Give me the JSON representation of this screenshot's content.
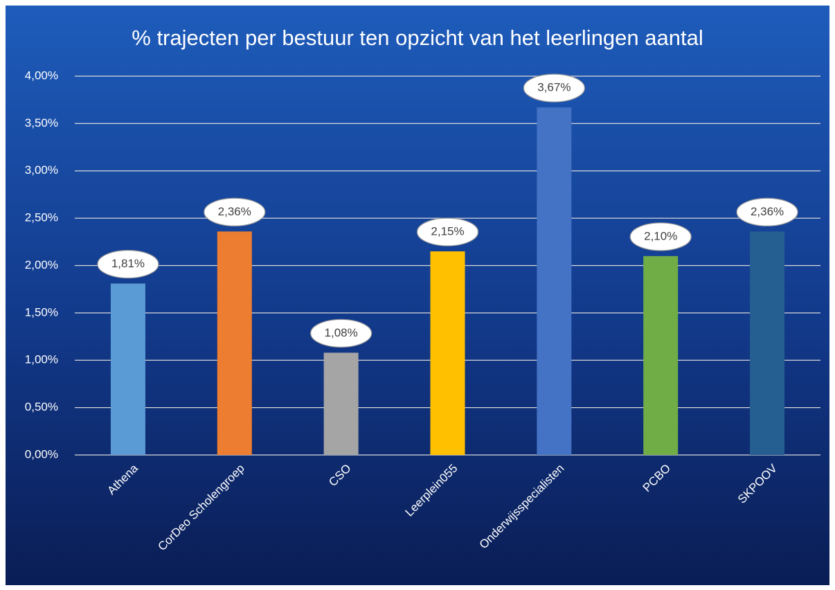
{
  "chart_data": {
    "type": "bar",
    "title": "% trajecten per bestuur ten opzicht van het leerlingen aantal",
    "categories": [
      "Athena",
      "CorDeo Scholengroep",
      "CSO",
      "Leerplein055",
      "Onderwijsspecialisten",
      "PCBO",
      "SKPOOV"
    ],
    "values": [
      1.81,
      2.36,
      1.08,
      2.15,
      3.67,
      2.1,
      2.36
    ],
    "value_labels": [
      "1,81%",
      "2,36%",
      "1,08%",
      "2,15%",
      "3,67%",
      "2,10%",
      "2,36%"
    ],
    "colors": [
      "#5b9bd5",
      "#ed7d31",
      "#a5a5a5",
      "#ffc000",
      "#4472c4",
      "#70ad47",
      "#255e91"
    ],
    "ylim": [
      0,
      4
    ],
    "yticks": [
      {
        "value": 0,
        "label": "0,00%"
      },
      {
        "value": 0.5,
        "label": "0,50%"
      },
      {
        "value": 1,
        "label": "1,00%"
      },
      {
        "value": 1.5,
        "label": "1,50%"
      },
      {
        "value": 2,
        "label": "2,00%"
      },
      {
        "value": 2.5,
        "label": "2,50%"
      },
      {
        "value": 3,
        "label": "3,00%"
      },
      {
        "value": 3.5,
        "label": "3,50%"
      },
      {
        "value": 4,
        "label": "4,00%"
      }
    ],
    "grid": true
  }
}
